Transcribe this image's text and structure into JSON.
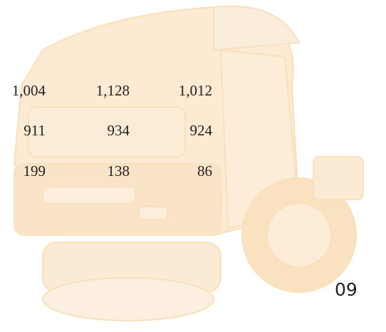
{
  "table": {
    "rows": [
      [
        "1,004",
        "1,128",
        "1,012"
      ],
      [
        "911",
        "934",
        "924"
      ],
      [
        "199",
        "138",
        "86"
      ]
    ]
  },
  "footer": {
    "page_number": "09"
  }
}
